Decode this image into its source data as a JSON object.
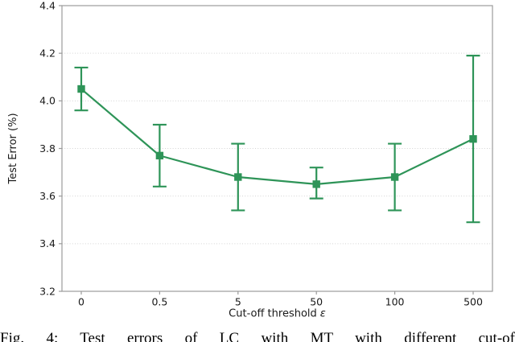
{
  "chart_data": {
    "type": "line",
    "title": "",
    "xlabel": "Cut-off threshold ε",
    "ylabel": "Test Error (%)",
    "categories": [
      "0",
      "0.5",
      "5",
      "50",
      "100",
      "500"
    ],
    "series": [
      {
        "name": "LC with MT",
        "values": [
          4.05,
          3.77,
          3.68,
          3.65,
          3.68,
          3.84
        ],
        "err_low": [
          3.96,
          3.64,
          3.54,
          3.59,
          3.54,
          3.49
        ],
        "err_high": [
          4.14,
          3.9,
          3.82,
          3.72,
          3.82,
          4.19
        ]
      }
    ],
    "ylim": [
      3.2,
      4.4
    ],
    "ytick_labels": [
      "3.2",
      "3.4",
      "3.6",
      "3.8",
      "4.0",
      "4.2",
      "4.4"
    ],
    "grid": "horizontal-dotted",
    "legend": "none",
    "marker": "square",
    "colors": {
      "line": "#2e9458",
      "grid": "#c9c9c9",
      "spine": "#9b9b9b",
      "text": "#191919"
    }
  },
  "caption": "Fig. 4: Test errors of LC with MT with different cut-of"
}
